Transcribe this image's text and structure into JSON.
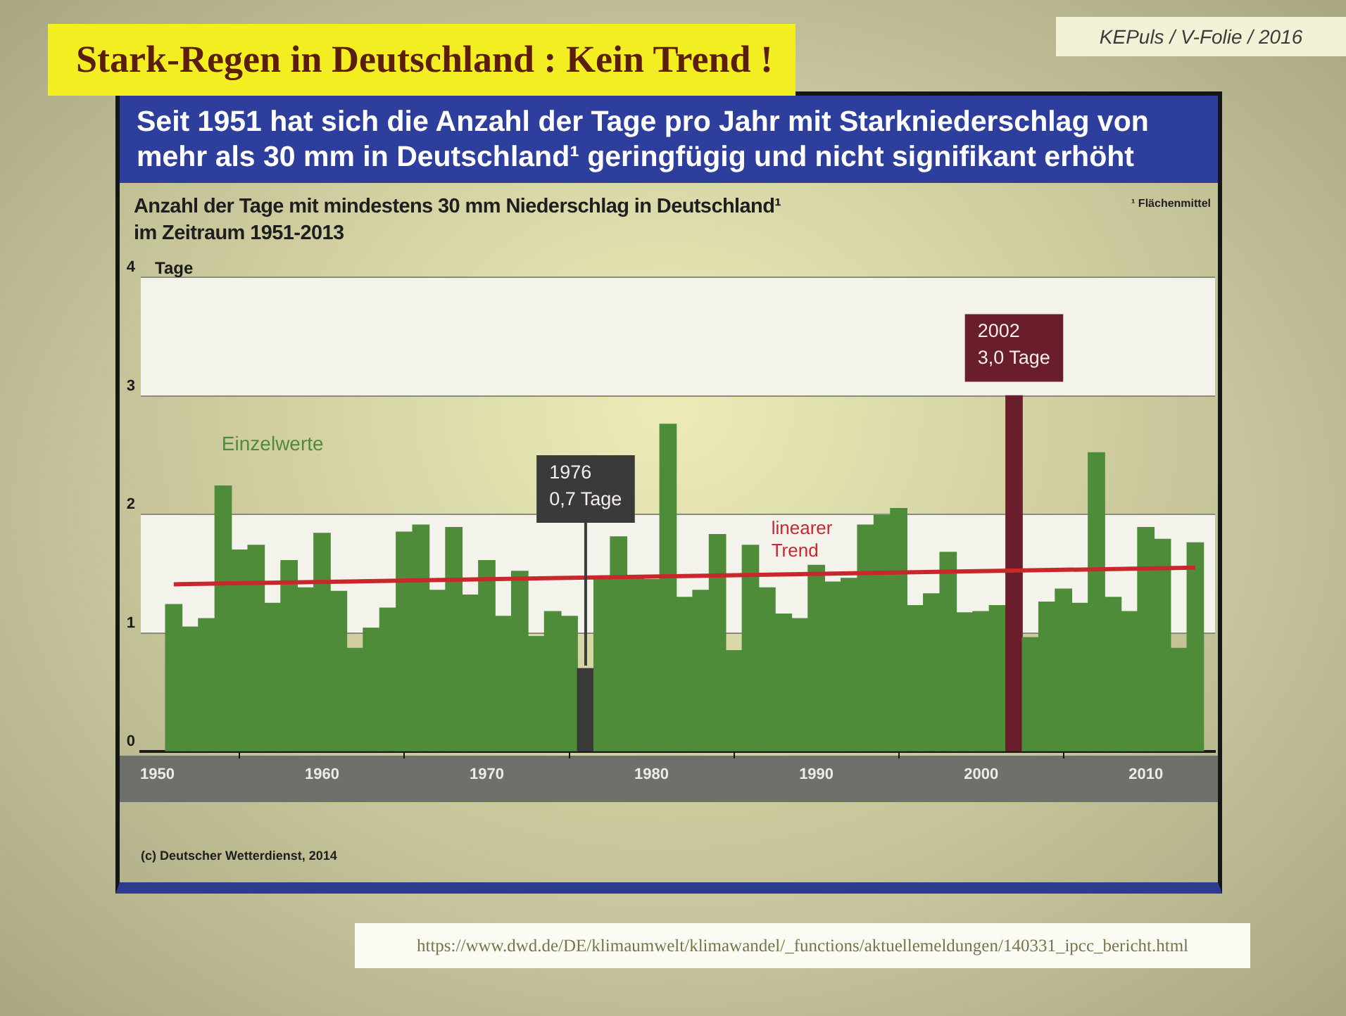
{
  "chart_data": {
    "type": "bar",
    "title": "Stark-Regen in Deutschland : Kein Trend !",
    "subtitle": "Seit 1951 hat sich die Anzahl der Tage pro Jahr mit Starkniederschlag von mehr als 30 mm in Deutschland¹ geringfügig und nicht signifikant erhöht",
    "ylabel": "Tage",
    "x": [
      1951,
      1952,
      1953,
      1954,
      1955,
      1956,
      1957,
      1958,
      1959,
      1960,
      1961,
      1962,
      1963,
      1964,
      1965,
      1966,
      1967,
      1968,
      1969,
      1970,
      1971,
      1972,
      1973,
      1974,
      1975,
      1976,
      1977,
      1978,
      1979,
      1980,
      1981,
      1982,
      1983,
      1984,
      1985,
      1986,
      1987,
      1988,
      1989,
      1990,
      1991,
      1992,
      1993,
      1994,
      1995,
      1996,
      1997,
      1998,
      1999,
      2000,
      2001,
      2002,
      2003,
      2004,
      2005,
      2006,
      2007,
      2008,
      2009,
      2010,
      2011,
      2012,
      2013
    ],
    "series": [
      {
        "name": "Einzelwerte",
        "color": "#4e8c3a",
        "colors": [
          "#4e8c3a",
          "#4e8c3a",
          "#4e8c3a",
          "#4e8c3a",
          "#4e8c3a",
          "#4e8c3a",
          "#4e8c3a",
          "#4e8c3a",
          "#4e8c3a",
          "#4e8c3a",
          "#4e8c3a",
          "#4e8c3a",
          "#4e8c3a",
          "#4e8c3a",
          "#4e8c3a",
          "#4e8c3a",
          "#4e8c3a",
          "#4e8c3a",
          "#4e8c3a",
          "#4e8c3a",
          "#4e8c3a",
          "#4e8c3a",
          "#4e8c3a",
          "#4e8c3a",
          "#4e8c3a",
          "#3a3a38",
          "#4e8c3a",
          "#4e8c3a",
          "#4e8c3a",
          "#4e8c3a",
          "#4e8c3a",
          "#4e8c3a",
          "#4e8c3a",
          "#4e8c3a",
          "#4e8c3a",
          "#4e8c3a",
          "#4e8c3a",
          "#4e8c3a",
          "#4e8c3a",
          "#4e8c3a",
          "#4e8c3a",
          "#4e8c3a",
          "#4e8c3a",
          "#4e8c3a",
          "#4e8c3a",
          "#4e8c3a",
          "#4e8c3a",
          "#4e8c3a",
          "#4e8c3a",
          "#4e8c3a",
          "#4e8c3a",
          "#6a1d2b",
          "#4e8c3a",
          "#4e8c3a",
          "#4e8c3a",
          "#4e8c3a",
          "#4e8c3a",
          "#4e8c3a",
          "#4e8c3a",
          "#4e8c3a",
          "#4e8c3a",
          "#4e8c3a",
          "#4e8c3a"
        ],
        "values": [
          1.24,
          1.05,
          1.12,
          2.24,
          1.7,
          1.74,
          1.25,
          1.61,
          1.38,
          1.84,
          1.35,
          0.87,
          1.04,
          1.21,
          1.85,
          1.91,
          1.36,
          1.89,
          1.32,
          1.61,
          1.14,
          1.52,
          0.97,
          1.18,
          1.14,
          0.7,
          1.48,
          1.81,
          1.48,
          1.45,
          2.76,
          1.3,
          1.36,
          1.83,
          0.85,
          1.74,
          1.38,
          1.16,
          1.12,
          1.57,
          1.43,
          1.46,
          1.91,
          1.99,
          2.05,
          1.23,
          1.33,
          1.68,
          1.17,
          1.18,
          1.23,
          3.0,
          0.96,
          1.26,
          1.37,
          1.25,
          2.52,
          1.3,
          1.18,
          1.89,
          1.79,
          0.87,
          1.76
        ]
      },
      {
        "name": "linearer Trend",
        "type": "line",
        "color": "#c8282c",
        "x": [
          1951,
          2013
        ],
        "values": [
          1.41,
          1.55
        ]
      }
    ],
    "marker": "none",
    "xlim": [
      1949,
      2014.2
    ],
    "xticks": [
      1950,
      {
        "value": 1955,
        "label": null
      },
      1960,
      {
        "value": 1965,
        "label": null
      },
      1970,
      {
        "value": 1975,
        "label": null
      },
      1980,
      {
        "value": 1985,
        "label": null
      },
      1990,
      {
        "value": 1995,
        "label": null
      },
      2000,
      {
        "value": 2005,
        "label": null
      },
      2010
    ],
    "ylim": [
      0,
      4
    ],
    "yticks": [
      0,
      1,
      2,
      3,
      4
    ],
    "grid": "y",
    "annotations": [
      "Anzahl der Tage mit mindestens 30 mm Niederschlag in Deutschland¹\nim Zeitraum 1951-2013",
      "¹ Flächenmittel",
      "(c) Deutscher Wetterdienst, 2014",
      "https://www.dwd.de/DE/klimaumwelt/klimawandel/_functions/aktuellemeldungen/140331_ipcc_bericht.html",
      "KEPuls / V-Folie / 2016",
      {
        "text": "1976\n0,7 Tage",
        "x": 1976,
        "y": 0.7
      },
      {
        "text": "2002\n3,0 Tage",
        "x": 2002,
        "y": 3.0
      }
    ]
  }
}
